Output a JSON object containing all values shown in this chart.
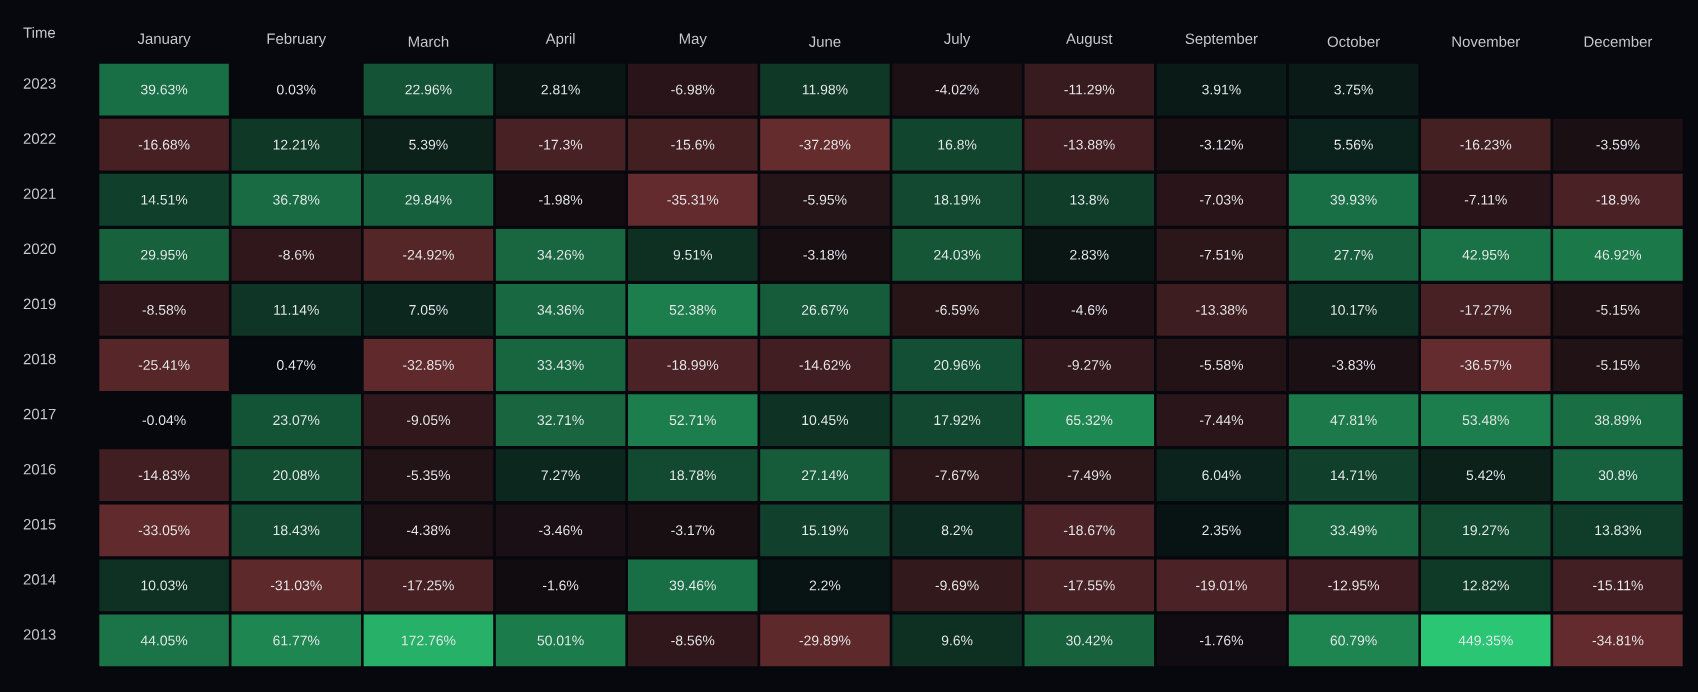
{
  "chart_data": {
    "type": "heatmap",
    "ylabel": "Time",
    "categories": [
      "January",
      "February",
      "March",
      "April",
      "May",
      "June",
      "July",
      "August",
      "September",
      "October",
      "November",
      "December"
    ],
    "y_categories": [
      "2023",
      "2022",
      "2021",
      "2020",
      "2019",
      "2018",
      "2017",
      "2016",
      "2015",
      "2014",
      "2013"
    ],
    "cells": [
      [
        39.63,
        0.03,
        22.96,
        2.81,
        -6.98,
        11.98,
        -4.02,
        -11.29,
        3.91,
        3.75,
        null,
        null
      ],
      [
        -16.68,
        12.21,
        5.39,
        -17.3,
        -15.6,
        -37.28,
        16.8,
        -13.88,
        -3.12,
        5.56,
        -16.23,
        -3.59
      ],
      [
        14.51,
        36.78,
        29.84,
        -1.98,
        -35.31,
        -5.95,
        18.19,
        13.8,
        -7.03,
        39.93,
        -7.11,
        -18.9
      ],
      [
        29.95,
        -8.6,
        -24.92,
        34.26,
        9.51,
        -3.18,
        24.03,
        2.83,
        -7.51,
        27.7,
        42.95,
        46.92
      ],
      [
        -8.58,
        11.14,
        7.05,
        34.36,
        52.38,
        26.67,
        -6.59,
        -4.6,
        -13.38,
        10.17,
        -17.27,
        -5.15
      ],
      [
        -25.41,
        0.47,
        -32.85,
        33.43,
        -18.99,
        -14.62,
        20.96,
        -9.27,
        -5.58,
        -3.83,
        -36.57,
        -5.15
      ],
      [
        -0.04,
        23.07,
        -9.05,
        32.71,
        52.71,
        10.45,
        17.92,
        65.32,
        -7.44,
        47.81,
        53.48,
        38.89
      ],
      [
        -14.83,
        20.08,
        -5.35,
        7.27,
        18.78,
        27.14,
        -7.67,
        -7.49,
        6.04,
        14.71,
        5.42,
        30.8
      ],
      [
        -33.05,
        18.43,
        -4.38,
        -3.46,
        -3.17,
        15.19,
        8.2,
        -18.67,
        2.35,
        33.49,
        19.27,
        13.83
      ],
      [
        10.03,
        -31.03,
        -17.25,
        -1.6,
        39.46,
        2.2,
        -9.69,
        -17.55,
        -19.01,
        -12.95,
        12.82,
        -15.11
      ],
      [
        44.05,
        61.77,
        172.76,
        50.01,
        -8.56,
        -29.89,
        9.6,
        30.42,
        -1.76,
        60.79,
        449.35,
        -34.81
      ]
    ],
    "cell_labels": [
      [
        "39.63%",
        "0.03%",
        "22.96%",
        "2.81%",
        "-6.98%",
        "11.98%",
        "-4.02%",
        "-11.29%",
        "3.91%",
        "3.75%",
        null,
        null
      ],
      [
        "-16.68%",
        "12.21%",
        "5.39%",
        "-17.3%",
        "-15.6%",
        "-37.28%",
        "16.8%",
        "-13.88%",
        "-3.12%",
        "5.56%",
        "-16.23%",
        "-3.59%"
      ],
      [
        "14.51%",
        "36.78%",
        "29.84%",
        "-1.98%",
        "-35.31%",
        "-5.95%",
        "18.19%",
        "13.8%",
        "-7.03%",
        "39.93%",
        "-7.11%",
        "-18.9%"
      ],
      [
        "29.95%",
        "-8.6%",
        "-24.92%",
        "34.26%",
        "9.51%",
        "-3.18%",
        "24.03%",
        "2.83%",
        "-7.51%",
        "27.7%",
        "42.95%",
        "46.92%"
      ],
      [
        "-8.58%",
        "11.14%",
        "7.05%",
        "34.36%",
        "52.38%",
        "26.67%",
        "-6.59%",
        "-4.6%",
        "-13.38%",
        "10.17%",
        "-17.27%",
        "-5.15%"
      ],
      [
        "-25.41%",
        "0.47%",
        "-32.85%",
        "33.43%",
        "-18.99%",
        "-14.62%",
        "20.96%",
        "-9.27%",
        "-5.58%",
        "-3.83%",
        "-36.57%",
        "-5.15%"
      ],
      [
        "-0.04%",
        "23.07%",
        "-9.05%",
        "32.71%",
        "52.71%",
        "10.45%",
        "17.92%",
        "65.32%",
        "-7.44%",
        "47.81%",
        "53.48%",
        "38.89%"
      ],
      [
        "-14.83%",
        "20.08%",
        "-5.35%",
        "7.27%",
        "18.78%",
        "27.14%",
        "-7.67%",
        "-7.49%",
        "6.04%",
        "14.71%",
        "5.42%",
        "30.8%"
      ],
      [
        "-33.05%",
        "18.43%",
        "-4.38%",
        "-3.46%",
        "-3.17%",
        "15.19%",
        "8.2%",
        "-18.67%",
        "2.35%",
        "33.49%",
        "19.27%",
        "13.83%"
      ],
      [
        "10.03%",
        "-31.03%",
        "-17.25%",
        "-1.6%",
        "39.46%",
        "2.2%",
        "-9.69%",
        "-17.55%",
        "-19.01%",
        "-12.95%",
        "12.82%",
        "-15.11%"
      ],
      [
        "44.05%",
        "61.77%",
        "172.76%",
        "50.01%",
        "-8.56%",
        "-29.89%",
        "9.6%",
        "30.42%",
        "-1.76%",
        "60.79%",
        "449.35%",
        "-34.81%"
      ]
    ]
  }
}
